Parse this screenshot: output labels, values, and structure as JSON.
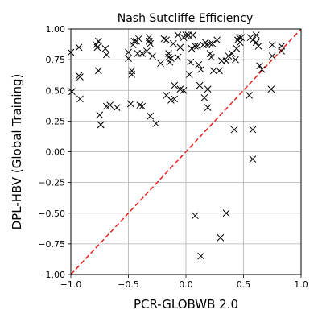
{
  "chart_data": {
    "type": "scatter",
    "title": "Nash Sutcliffe Efficiency",
    "xlabel": "PCR-GLOBWB 2.0",
    "ylabel": "DPL-HBV (Global Training)",
    "xlim": [
      -1.0,
      1.0
    ],
    "ylim": [
      -1.0,
      1.0
    ],
    "xticks": [
      "−1.0",
      "−0.5",
      "0.0",
      "0.5",
      "1.0"
    ],
    "yticks": [
      "−1.00",
      "−0.75",
      "−0.50",
      "−0.25",
      "0.00",
      "0.25",
      "0.50",
      "0.75",
      "1.00"
    ],
    "grid": true,
    "marker": "x",
    "colors": {
      "points": "#000000",
      "reference_line": "#e8211d",
      "grid": "#b0b0b0"
    },
    "reference_line": {
      "style": "dashed",
      "from": [
        -1.0,
        -1.0
      ],
      "to": [
        1.0,
        1.0
      ]
    },
    "points": [
      {
        "x": -1.0,
        "y": 0.81
      },
      {
        "x": -0.99,
        "y": 0.49
      },
      {
        "x": -0.93,
        "y": 0.85
      },
      {
        "x": -0.93,
        "y": 0.62
      },
      {
        "x": -0.92,
        "y": 0.61
      },
      {
        "x": -0.92,
        "y": 0.43
      },
      {
        "x": -0.78,
        "y": 0.87
      },
      {
        "x": -0.77,
        "y": 0.85
      },
      {
        "x": -0.76,
        "y": 0.9
      },
      {
        "x": -0.76,
        "y": 0.66
      },
      {
        "x": -0.75,
        "y": 0.3
      },
      {
        "x": -0.74,
        "y": 0.22
      },
      {
        "x": -0.74,
        "y": 0.22
      },
      {
        "x": -0.7,
        "y": 0.84
      },
      {
        "x": -0.69,
        "y": 0.79
      },
      {
        "x": -0.69,
        "y": 0.37
      },
      {
        "x": -0.66,
        "y": 0.38
      },
      {
        "x": -0.6,
        "y": 0.36
      },
      {
        "x": -0.5,
        "y": 0.81
      },
      {
        "x": -0.5,
        "y": 0.76
      },
      {
        "x": -0.48,
        "y": 0.39
      },
      {
        "x": -0.47,
        "y": 0.66
      },
      {
        "x": -0.47,
        "y": 0.63
      },
      {
        "x": -0.46,
        "y": 0.87
      },
      {
        "x": -0.45,
        "y": 0.9
      },
      {
        "x": -0.43,
        "y": 0.9
      },
      {
        "x": -0.42,
        "y": 0.8
      },
      {
        "x": -0.41,
        "y": 0.92
      },
      {
        "x": -0.4,
        "y": 0.38
      },
      {
        "x": -0.38,
        "y": 0.8
      },
      {
        "x": -0.38,
        "y": 0.37
      },
      {
        "x": -0.34,
        "y": 0.82
      },
      {
        "x": -0.32,
        "y": 0.93
      },
      {
        "x": -0.32,
        "y": 0.9
      },
      {
        "x": -0.31,
        "y": 0.88
      },
      {
        "x": -0.31,
        "y": 0.29
      },
      {
        "x": -0.29,
        "y": 0.78
      },
      {
        "x": -0.26,
        "y": 0.23
      },
      {
        "x": -0.22,
        "y": 0.72
      },
      {
        "x": -0.19,
        "y": 0.92
      },
      {
        "x": -0.17,
        "y": 0.91
      },
      {
        "x": -0.17,
        "y": 0.46
      },
      {
        "x": -0.15,
        "y": 0.8
      },
      {
        "x": -0.15,
        "y": 0.77
      },
      {
        "x": -0.14,
        "y": 0.73
      },
      {
        "x": -0.13,
        "y": 0.76
      },
      {
        "x": -0.13,
        "y": 0.42
      },
      {
        "x": -0.11,
        "y": 0.88
      },
      {
        "x": -0.1,
        "y": 0.54
      },
      {
        "x": -0.1,
        "y": 0.43
      },
      {
        "x": -0.07,
        "y": 0.95
      },
      {
        "x": -0.07,
        "y": 0.77
      },
      {
        "x": -0.05,
        "y": 0.85
      },
      {
        "x": -0.05,
        "y": 0.51
      },
      {
        "x": -0.02,
        "y": 0.93
      },
      {
        "x": -0.02,
        "y": 0.5
      },
      {
        "x": 0.0,
        "y": 0.95
      },
      {
        "x": 0.02,
        "y": 0.95
      },
      {
        "x": 0.03,
        "y": 0.63
      },
      {
        "x": 0.04,
        "y": 0.73
      },
      {
        "x": 0.05,
        "y": 0.84
      },
      {
        "x": 0.06,
        "y": 0.95
      },
      {
        "x": 0.08,
        "y": 0.86
      },
      {
        "x": 0.08,
        "y": -0.52
      },
      {
        "x": 0.1,
        "y": 0.86
      },
      {
        "x": 0.11,
        "y": 0.71
      },
      {
        "x": 0.12,
        "y": 0.54
      },
      {
        "x": 0.13,
        "y": 0.67
      },
      {
        "x": 0.13,
        "y": -0.85
      },
      {
        "x": 0.15,
        "y": 0.87
      },
      {
        "x": 0.16,
        "y": 0.44
      },
      {
        "x": 0.17,
        "y": 0.89
      },
      {
        "x": 0.18,
        "y": 0.87
      },
      {
        "x": 0.19,
        "y": 0.51
      },
      {
        "x": 0.19,
        "y": 0.36
      },
      {
        "x": 0.21,
        "y": 0.88
      },
      {
        "x": 0.21,
        "y": 0.8
      },
      {
        "x": 0.22,
        "y": 0.77
      },
      {
        "x": 0.23,
        "y": 0.88
      },
      {
        "x": 0.24,
        "y": 0.66
      },
      {
        "x": 0.27,
        "y": 0.91
      },
      {
        "x": 0.29,
        "y": 0.66
      },
      {
        "x": 0.3,
        "y": -0.7
      },
      {
        "x": 0.31,
        "y": 0.74
      },
      {
        "x": 0.35,
        "y": 0.74
      },
      {
        "x": 0.35,
        "y": -0.5
      },
      {
        "x": 0.37,
        "y": 0.78
      },
      {
        "x": 0.4,
        "y": 0.8
      },
      {
        "x": 0.42,
        "y": 0.18
      },
      {
        "x": 0.43,
        "y": 0.75
      },
      {
        "x": 0.44,
        "y": 0.84
      },
      {
        "x": 0.45,
        "y": 0.91
      },
      {
        "x": 0.46,
        "y": 0.93
      },
      {
        "x": 0.47,
        "y": 0.89
      },
      {
        "x": 0.48,
        "y": 0.93
      },
      {
        "x": 0.55,
        "y": 0.46
      },
      {
        "x": 0.56,
        "y": 0.93
      },
      {
        "x": 0.58,
        "y": 0.91
      },
      {
        "x": 0.58,
        "y": 0.18
      },
      {
        "x": 0.58,
        "y": -0.06
      },
      {
        "x": 0.61,
        "y": 0.95
      },
      {
        "x": 0.61,
        "y": 0.89
      },
      {
        "x": 0.63,
        "y": 0.86
      },
      {
        "x": 0.64,
        "y": 0.7
      },
      {
        "x": 0.66,
        "y": 0.67
      },
      {
        "x": 0.74,
        "y": 0.51
      },
      {
        "x": 0.75,
        "y": 0.87
      },
      {
        "x": 0.75,
        "y": 0.78
      },
      {
        "x": 0.83,
        "y": 0.86
      },
      {
        "x": 0.83,
        "y": 0.82
      }
    ]
  }
}
